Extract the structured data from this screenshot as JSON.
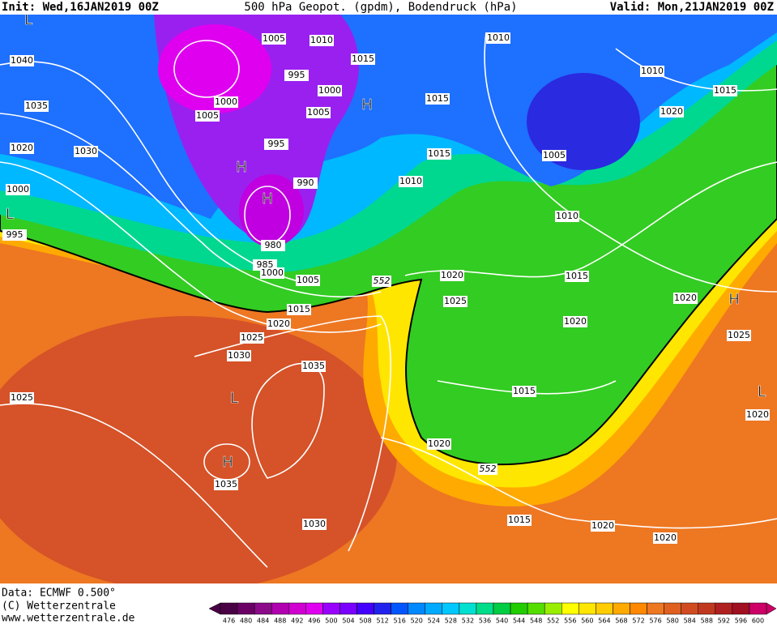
{
  "header": {
    "init": "Init: Wed,16JAN2019 00Z",
    "title": "500 hPa Geopot. (gpdm), Bodendruck (hPa)",
    "valid": "Valid: Mon,21JAN2019 00Z"
  },
  "footer": {
    "data": "Data: ECMWF  0.500°",
    "copyright": "(C) Wetterzentrale",
    "url": "www.wetterzentrale.de"
  },
  "isobar_labels": [
    1005,
    1010,
    1010,
    1040,
    1015,
    995,
    1010,
    1000,
    1015,
    1035,
    1000,
    1015,
    1005,
    1005,
    1020,
    1020,
    1030,
    995,
    1015,
    1005,
    990,
    1010,
    1000,
    1010,
    995,
    980,
    985,
    1000,
    1020,
    1005,
    1015,
    1025,
    1020,
    1015,
    1020,
    1020,
    1025,
    1025,
    1030,
    1035,
    1015,
    1025,
    1020,
    1020,
    1035,
    1015,
    1030,
    1020,
    1020
  ],
  "geopotential_labels": [
    552,
    552
  ],
  "pressure_centers": [
    "L",
    "H",
    "H",
    "H",
    "L",
    "H",
    "L",
    "H",
    "L"
  ],
  "colorbar": {
    "values": [
      476,
      480,
      484,
      488,
      492,
      496,
      500,
      504,
      508,
      512,
      516,
      520,
      524,
      528,
      532,
      536,
      540,
      544,
      548,
      552,
      556,
      560,
      564,
      568,
      572,
      576,
      580,
      584,
      588,
      592,
      596,
      600
    ],
    "colors": [
      "#4a0044",
      "#6a0066",
      "#8a0a8a",
      "#b000b0",
      "#d000d0",
      "#e000f0",
      "#9900ff",
      "#7a00ff",
      "#4400ff",
      "#2222ee",
      "#0055ff",
      "#0088ff",
      "#00aaff",
      "#00c8ff",
      "#00e0d0",
      "#00dd88",
      "#00cc44",
      "#22cc00",
      "#55dd00",
      "#99ee00",
      "#ffff00",
      "#ffe600",
      "#ffcc00",
      "#ffaa00",
      "#ff8800",
      "#ee7722",
      "#e06020",
      "#d04c20",
      "#c03820",
      "#b02020",
      "#a01020",
      "#cc0066"
    ]
  }
}
